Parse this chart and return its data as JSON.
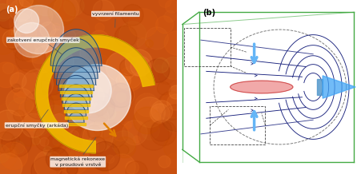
{
  "panel_a_label": "(a)",
  "panel_b_label": "(b)",
  "label_fontsize": 7,
  "label_color": "#000000",
  "annotation_fontsize": 5.5,
  "annotation_color": "#000000",
  "bg_color_a": "#c85010",
  "bg_color_b": "#ffffff",
  "border_color": "#333333",
  "ann_a_1": "zakotvení erupčních smyček",
  "ann_a_2": "vyvrzení filamentu",
  "ann_a_3": "erupční smyčky (arkáda)",
  "ann_a_4_1": "magnetická rekonexe",
  "ann_a_4_2": "v proudové vrstvě",
  "green_box_color": "#44aa44",
  "dark_blue_color": "#1a237e",
  "medium_blue_color": "#1565c0",
  "light_blue_color": "#64b5f6",
  "red_fill_color": "#ef9a9a",
  "arrow_blue": "#42a5f5",
  "dashed_color": "#333333"
}
